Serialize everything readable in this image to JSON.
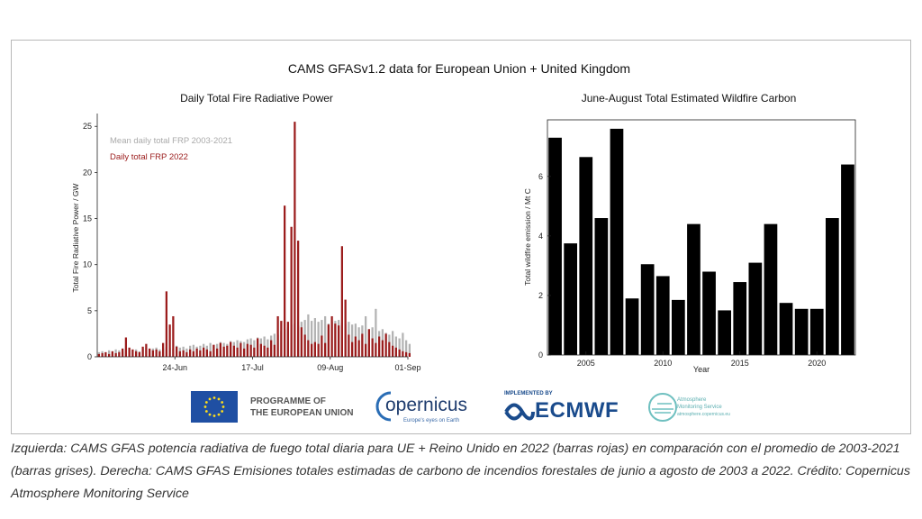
{
  "main_title": "CAMS GFASv1.2  data for European Union + United Kingdom",
  "caption": "Izquierda: CAMS GFAS potencia radiativa de fuego total diaria para UE + Reino Unido en 2022 (barras rojas) en comparación con el promedio de 2003-2021 (barras grises). Derecha: CAMS GFAS Emisiones totales estimadas de carbono de incendios forestales de junio a agosto de 2003 a 2022. Crédito: Copernicus Atmosphere Monitoring Service",
  "colors": {
    "red": "#9b1c1c",
    "grey": "#b3b3b3",
    "black": "#000000"
  },
  "logos": {
    "eu_line1": "PROGRAMME OF",
    "eu_line2": "THE EUROPEAN UNION",
    "copernicus": "opernicus",
    "copernicus_tagline": "Europe's eyes on Earth",
    "ecmwf_small": "IMPLEMENTED BY",
    "ecmwf": "ECMWF",
    "cams_line1": "Atmosphere",
    "cams_line2": "Monitoring Service",
    "cams_line3": "atmosphere.copernicus.eu"
  },
  "chart_data": [
    {
      "type": "bar",
      "title": "Daily Total Fire Radiative Power",
      "xlabel": "",
      "ylabel": "Total Fire Radiative Power / GW",
      "x_start": "2022-06-01",
      "x_end": "2022-09-01",
      "xticks": [
        "24-Jun",
        "17-Jul",
        "09-Aug",
        "01-Sep"
      ],
      "ylim": [
        0,
        26
      ],
      "yticks": [
        0,
        5,
        10,
        15,
        20,
        25
      ],
      "series": [
        {
          "name": "Mean daily total FRP 2003-2021",
          "values": [
            0.5,
            0.6,
            0.5,
            0.7,
            0.6,
            0.8,
            0.7,
            0.6,
            0.8,
            0.9,
            0.7,
            0.8,
            0.6,
            0.9,
            1.0,
            0.8,
            0.9,
            1.0,
            0.8,
            0.9,
            1.1,
            1.0,
            0.9,
            1.2,
            1.0,
            1.1,
            0.9,
            1.2,
            1.3,
            1.1,
            1.2,
            1.4,
            1.2,
            1.5,
            1.3,
            1.4,
            1.6,
            1.5,
            1.4,
            1.7,
            1.6,
            1.8,
            1.7,
            1.6,
            1.9,
            2.0,
            1.8,
            2.1,
            2.0,
            2.2,
            1.9,
            2.3,
            2.5,
            2.4,
            2.8,
            3.0,
            3.2,
            3.5,
            3.6,
            3.4,
            3.8,
            4.0,
            4.6,
            3.9,
            4.2,
            3.8,
            4.0,
            4.4,
            3.6,
            3.8,
            3.9,
            4.0,
            3.7,
            3.6,
            3.8,
            3.5,
            3.6,
            3.2,
            3.4,
            4.4,
            3.0,
            3.2,
            5.2,
            2.8,
            3.0,
            2.6,
            2.4,
            2.8,
            2.2,
            2.0,
            2.6,
            1.8,
            1.4
          ]
        },
        {
          "name": "Daily total FRP 2022",
          "values": [
            0.3,
            0.4,
            0.5,
            0.3,
            0.6,
            0.4,
            0.5,
            0.9,
            2.1,
            1.0,
            0.8,
            0.6,
            0.5,
            1.1,
            1.4,
            0.9,
            0.7,
            0.8,
            0.6,
            1.5,
            7.1,
            3.5,
            4.4,
            1.1,
            0.6,
            0.7,
            0.5,
            0.8,
            0.6,
            0.9,
            0.7,
            1.0,
            0.8,
            0.6,
            1.3,
            0.9,
            1.5,
            1.1,
            1.2,
            1.6,
            1.2,
            1.0,
            1.5,
            0.9,
            1.4,
            1.3,
            1.0,
            2.0,
            1.4,
            1.2,
            1.0,
            1.8,
            1.3,
            4.4,
            3.9,
            16.4,
            3.8,
            14.1,
            25.5,
            12.6,
            3.2,
            2.4,
            1.8,
            1.4,
            1.6,
            1.4,
            2.3,
            1.5,
            3.5,
            4.4,
            3.6,
            3.4,
            12.0,
            6.2,
            2.4,
            1.6,
            2.2,
            1.8,
            2.5,
            1.4,
            3.0,
            2.0,
            1.5,
            2.2,
            1.8,
            2.5,
            1.6,
            1.2,
            1.0,
            0.8,
            0.6,
            0.5,
            0.4
          ]
        }
      ]
    },
    {
      "type": "bar",
      "title": "June-August  Total Estimated Wildfire Carbon",
      "xlabel": "Year",
      "ylabel": "Total wildfire emission / Mt C",
      "categories": [
        2003,
        2004,
        2005,
        2006,
        2007,
        2008,
        2009,
        2010,
        2011,
        2012,
        2013,
        2014,
        2015,
        2016,
        2017,
        2018,
        2019,
        2020,
        2021,
        2022
      ],
      "xticks": [
        2005,
        2010,
        2015,
        2020
      ],
      "ylim": [
        0,
        7.9
      ],
      "yticks": [
        0,
        2,
        4,
        6
      ],
      "values": [
        7.3,
        3.75,
        6.65,
        4.6,
        7.6,
        1.9,
        3.05,
        2.65,
        1.85,
        4.4,
        2.8,
        1.5,
        2.45,
        3.1,
        4.4,
        1.75,
        1.55,
        1.55,
        4.6,
        6.4
      ]
    }
  ]
}
